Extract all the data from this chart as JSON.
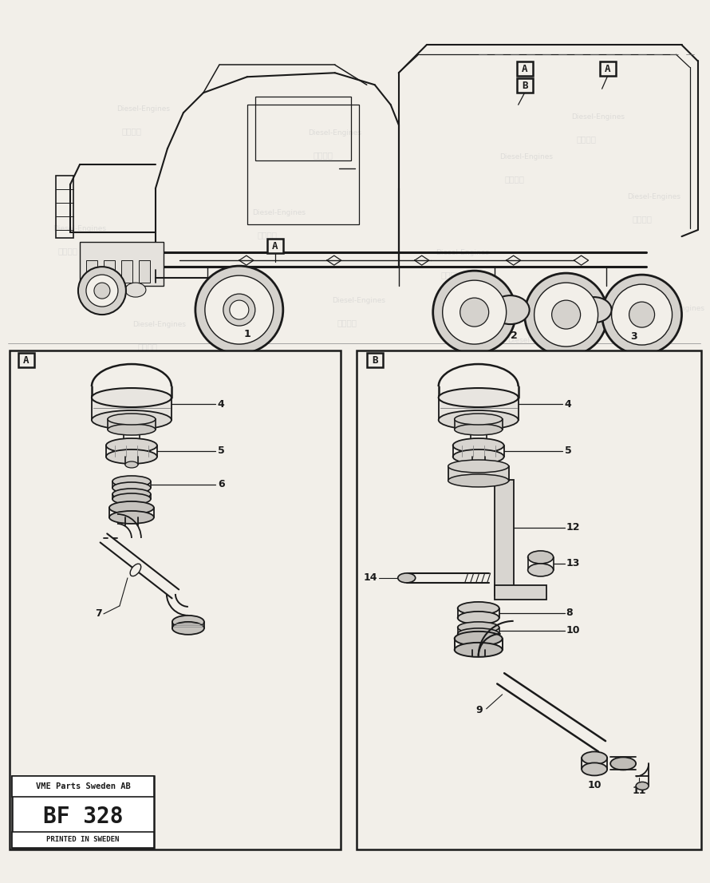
{
  "bg_color": "#f2efe9",
  "line_color": "#1a1a1a",
  "footer_line1": "VME Parts Sweden AB",
  "footer_line2": "BF 328",
  "footer_line3": "PRINTED IN SWEDEN",
  "watermark_color": "#c8c8c8"
}
